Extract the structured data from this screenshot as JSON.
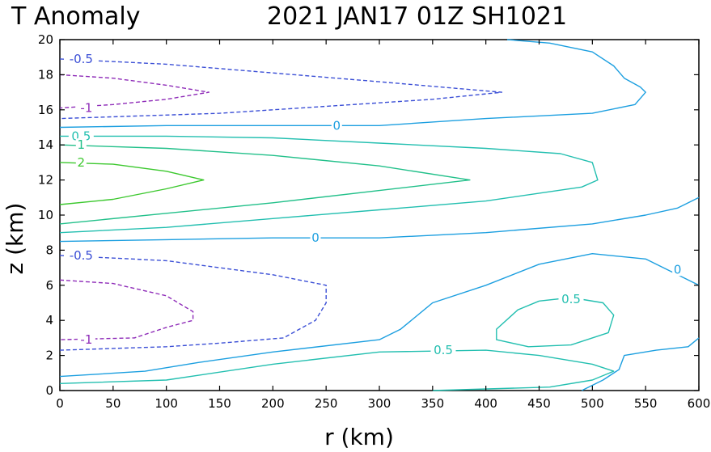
{
  "title": {
    "left": "T Anomaly",
    "right": "2021 JAN17 01Z   SH1021"
  },
  "chart_data": {
    "type": "contour",
    "title": "T Anomaly   2021 JAN17 01Z   SH1021",
    "xlabel": "r (km)",
    "ylabel": "z (km)",
    "xlim": [
      0,
      600
    ],
    "ylim": [
      0,
      20
    ],
    "xticks": [
      0,
      50,
      100,
      150,
      200,
      250,
      300,
      350,
      400,
      450,
      500,
      550,
      600
    ],
    "yticks": [
      0,
      2,
      4,
      6,
      8,
      10,
      12,
      14,
      16,
      18,
      20
    ],
    "grid": false,
    "colors": {
      "-1": "#8e2bb8",
      "-0.5": "#3b4fd6",
      "0": "#1c9fe0",
      "0.5": "#23bfb0",
      "1": "#22c08a",
      "2": "#3cc82e"
    },
    "contours": [
      {
        "level": -0.5,
        "dashed": true,
        "label": "-0.5",
        "label_at": [
          20,
          18.9
        ],
        "points": [
          [
            0,
            18.9
          ],
          [
            100,
            18.6
          ],
          [
            200,
            18.1
          ],
          [
            300,
            17.6
          ],
          [
            415,
            17.0
          ],
          [
            350,
            16.6
          ],
          [
            250,
            16.2
          ],
          [
            150,
            15.8
          ],
          [
            0,
            15.5
          ]
        ]
      },
      {
        "level": -1,
        "dashed": true,
        "label": "-1",
        "label_at": [
          25,
          16.1
        ],
        "points": [
          [
            0,
            18.0
          ],
          [
            50,
            17.8
          ],
          [
            100,
            17.4
          ],
          [
            140,
            17.0
          ],
          [
            100,
            16.6
          ],
          [
            50,
            16.3
          ],
          [
            0,
            16.1
          ]
        ]
      },
      {
        "level": 0,
        "dashed": false,
        "label": "0",
        "label_at": [
          260,
          15.1
        ],
        "points": [
          [
            0,
            15.0
          ],
          [
            100,
            15.1
          ],
          [
            200,
            15.1
          ],
          [
            300,
            15.1
          ],
          [
            400,
            15.5
          ],
          [
            500,
            15.8
          ],
          [
            540,
            16.3
          ],
          [
            550,
            17.0
          ],
          [
            545,
            17.3
          ],
          [
            530,
            17.8
          ],
          [
            520,
            18.5
          ],
          [
            500,
            19.3
          ],
          [
            460,
            19.8
          ],
          [
            420,
            20.0
          ]
        ]
      },
      {
        "level": 0.5,
        "dashed": false,
        "label": "0.5",
        "label_at": [
          20,
          14.5
        ],
        "points": [
          [
            0,
            14.5
          ],
          [
            100,
            14.5
          ],
          [
            200,
            14.4
          ],
          [
            300,
            14.1
          ],
          [
            400,
            13.8
          ],
          [
            470,
            13.5
          ],
          [
            500,
            13.0
          ],
          [
            505,
            12.0
          ],
          [
            490,
            11.6
          ],
          [
            400,
            10.8
          ],
          [
            300,
            10.3
          ],
          [
            200,
            9.8
          ],
          [
            100,
            9.3
          ],
          [
            0,
            9.0
          ]
        ]
      },
      {
        "level": 1,
        "dashed": false,
        "label": "1",
        "label_at": [
          20,
          14.0
        ],
        "points": [
          [
            0,
            14.0
          ],
          [
            100,
            13.8
          ],
          [
            200,
            13.4
          ],
          [
            300,
            12.8
          ],
          [
            385,
            12.0
          ],
          [
            300,
            11.4
          ],
          [
            200,
            10.7
          ],
          [
            100,
            10.1
          ],
          [
            0,
            9.5
          ]
        ]
      },
      {
        "level": 2,
        "dashed": false,
        "label": "2",
        "label_at": [
          20,
          13.0
        ],
        "points": [
          [
            0,
            13.0
          ],
          [
            50,
            12.9
          ],
          [
            100,
            12.5
          ],
          [
            135,
            12.0
          ],
          [
            100,
            11.5
          ],
          [
            50,
            10.9
          ],
          [
            0,
            10.6
          ]
        ]
      },
      {
        "level": 0,
        "dashed": false,
        "label": "0",
        "label_at": [
          240,
          8.7
        ],
        "points": [
          [
            0,
            8.5
          ],
          [
            100,
            8.6
          ],
          [
            200,
            8.7
          ],
          [
            300,
            8.7
          ],
          [
            400,
            9.0
          ],
          [
            500,
            9.5
          ],
          [
            550,
            10.0
          ],
          [
            580,
            10.4
          ],
          [
            600,
            11.0
          ]
        ]
      },
      {
        "level": -0.5,
        "dashed": true,
        "label": "-0.5",
        "label_at": [
          20,
          7.7
        ],
        "points": [
          [
            0,
            7.7
          ],
          [
            100,
            7.4
          ],
          [
            200,
            6.6
          ],
          [
            250,
            6.0
          ],
          [
            250,
            5.0
          ],
          [
            240,
            4.0
          ],
          [
            210,
            3.0
          ],
          [
            150,
            2.7
          ],
          [
            100,
            2.5
          ],
          [
            0,
            2.3
          ]
        ]
      },
      {
        "level": -1,
        "dashed": true,
        "label": "-1",
        "label_at": [
          25,
          2.9
        ],
        "points": [
          [
            0,
            6.3
          ],
          [
            50,
            6.1
          ],
          [
            100,
            5.4
          ],
          [
            125,
            4.5
          ],
          [
            125,
            4.0
          ],
          [
            100,
            3.6
          ],
          [
            70,
            3.0
          ],
          [
            0,
            2.9
          ]
        ]
      },
      {
        "level": 0,
        "dashed": false,
        "label": "0",
        "label_at": [
          580,
          6.9
        ],
        "points": [
          [
            0,
            0.8
          ],
          [
            80,
            1.1
          ],
          [
            130,
            1.6
          ],
          [
            200,
            2.2
          ],
          [
            300,
            2.9
          ],
          [
            320,
            3.5
          ],
          [
            350,
            5.0
          ],
          [
            400,
            6.0
          ],
          [
            450,
            7.2
          ],
          [
            500,
            7.8
          ],
          [
            550,
            7.5
          ],
          [
            600,
            6.0
          ]
        ]
      },
      {
        "level": 0.5,
        "dashed": false,
        "label": "0.5",
        "label_at": [
          480,
          5.2
        ],
        "points": [
          [
            450,
            5.1
          ],
          [
            480,
            5.3
          ],
          [
            510,
            5.0
          ],
          [
            520,
            4.3
          ],
          [
            515,
            3.3
          ],
          [
            480,
            2.6
          ],
          [
            440,
            2.5
          ],
          [
            410,
            2.9
          ],
          [
            410,
            3.5
          ],
          [
            430,
            4.6
          ],
          [
            450,
            5.1
          ]
        ]
      },
      {
        "level": 0.5,
        "dashed": false,
        "label": "0.5",
        "label_at": [
          360,
          2.3
        ],
        "points": [
          [
            0,
            0.4
          ],
          [
            100,
            0.6
          ],
          [
            200,
            1.5
          ],
          [
            300,
            2.2
          ],
          [
            400,
            2.3
          ],
          [
            450,
            2.0
          ],
          [
            500,
            1.5
          ],
          [
            520,
            1.1
          ],
          [
            500,
            0.6
          ],
          [
            460,
            0.2
          ],
          [
            350,
            0.0
          ]
        ]
      },
      {
        "level": 0,
        "dashed": false,
        "label": "",
        "points": [
          [
            490,
            0.0
          ],
          [
            510,
            0.6
          ],
          [
            525,
            1.2
          ],
          [
            530,
            2.0
          ],
          [
            560,
            2.3
          ],
          [
            590,
            2.5
          ],
          [
            600,
            3.0
          ]
        ]
      }
    ]
  }
}
